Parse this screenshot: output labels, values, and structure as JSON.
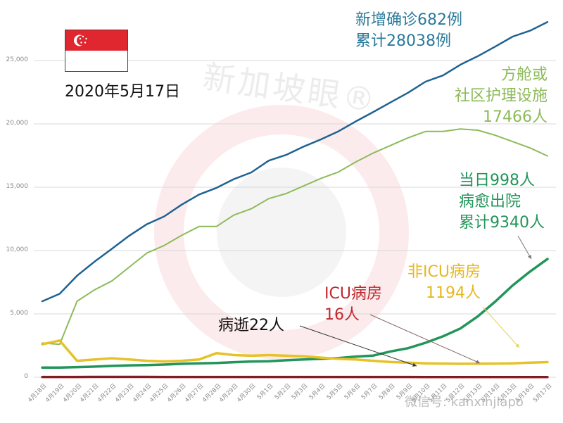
{
  "header": {
    "date_title": "2020年5月17日",
    "flag": "singapore-flag",
    "watermark": "新加坡眼®",
    "wechat_watermark": "微信号: kanxinjiapo"
  },
  "annotations": {
    "confirmed": {
      "line1": "新增确诊682例",
      "line2": "累计28038例",
      "color": "#2a7a9a"
    },
    "community": {
      "line1": "方舱或",
      "line2": "社区护理设施",
      "line3": "17466人",
      "color": "#8dbb5a"
    },
    "discharged": {
      "line1": "当日998人",
      "line2": "病愈出院",
      "line3": "累计9340人",
      "color": "#22955a"
    },
    "non_icu": {
      "line1": "非ICU病房",
      "line2": "1194人",
      "color": "#e6b820"
    },
    "icu": {
      "line1": "ICU病房",
      "line2": "16人",
      "color": "#c0282e"
    },
    "deaths": {
      "line1": "病逝22人",
      "color": "#111111"
    }
  },
  "chart_data": {
    "type": "line",
    "title": "2020年5月17日",
    "xlabel": "",
    "ylabel": "",
    "ylim": [
      0,
      28000
    ],
    "grid": true,
    "legend": "inline annotations",
    "categories": [
      "4月18日",
      "4月19日",
      "4月20日",
      "4月21日",
      "4月22日",
      "4月23日",
      "4月24日",
      "4月25日",
      "4月26日",
      "4月27日",
      "4月28日",
      "4月29日",
      "4月30日",
      "5月1日",
      "5月2日",
      "5月3日",
      "5月4日",
      "5月5日",
      "5月6日",
      "5月7日",
      "5月8日",
      "5月9日",
      "5月10日",
      "5月11日",
      "5月12日",
      "5月13日",
      "5月14日",
      "5月15日",
      "5月16日",
      "5月17日"
    ],
    "yticks": [
      "0",
      "5,000",
      "10,000",
      "15,000",
      "20,000",
      "25,000"
    ],
    "series": [
      {
        "name": "累计确诊",
        "color": "#1f6391",
        "values": [
          5992,
          6588,
          8014,
          9125,
          10141,
          11178,
          12075,
          12693,
          13624,
          14423,
          14951,
          15641,
          16169,
          17101,
          17548,
          18205,
          18778,
          19410,
          20198,
          20939,
          21707,
          22460,
          23336,
          23822,
          24671,
          25346,
          26098,
          26891,
          27356,
          28038
        ]
      },
      {
        "name": "方舱或社区护理设施",
        "color": "#8dbb5a",
        "values": [
          2700,
          2600,
          6000,
          6900,
          7600,
          8700,
          9800,
          10400,
          11200,
          11900,
          11900,
          12800,
          13300,
          14100,
          14500,
          15100,
          15700,
          16200,
          17000,
          17700,
          18300,
          18900,
          19400,
          19400,
          19600,
          19500,
          19100,
          18600,
          18100,
          17466
        ]
      },
      {
        "name": "病愈出院",
        "color": "#22955a",
        "values": [
          768,
          768,
          801,
          838,
          896,
          940,
          956,
          1002,
          1060,
          1095,
          1128,
          1188,
          1244,
          1268,
          1339,
          1408,
          1457,
          1519,
          1634,
          1712,
          2040,
          2296,
          2721,
          3225,
          3851,
          4809,
          5973,
          7248,
          8342,
          9340
        ]
      },
      {
        "name": "非ICU病房",
        "color": "#e6c229",
        "values": [
          2600,
          2900,
          1300,
          1400,
          1500,
          1400,
          1300,
          1250,
          1300,
          1400,
          1900,
          1750,
          1700,
          1750,
          1700,
          1650,
          1550,
          1450,
          1400,
          1300,
          1200,
          1150,
          1100,
          1080,
          1060,
          1070,
          1080,
          1100,
          1150,
          1194
        ]
      },
      {
        "name": "ICU病房",
        "color": "#b3262c",
        "values": [
          22,
          22,
          23,
          25,
          25,
          25,
          25,
          24,
          24,
          24,
          24,
          23,
          23,
          22,
          22,
          22,
          22,
          21,
          20,
          20,
          20,
          20,
          19,
          19,
          18,
          17,
          17,
          16,
          16,
          16
        ]
      },
      {
        "name": "病逝",
        "color": "#111111",
        "values": [
          12,
          12,
          12,
          12,
          12,
          14,
          14,
          14,
          14,
          14,
          15,
          15,
          15,
          16,
          17,
          18,
          18,
          18,
          18,
          18,
          18,
          18,
          20,
          20,
          20,
          20,
          20,
          21,
          21,
          22
        ]
      }
    ]
  }
}
